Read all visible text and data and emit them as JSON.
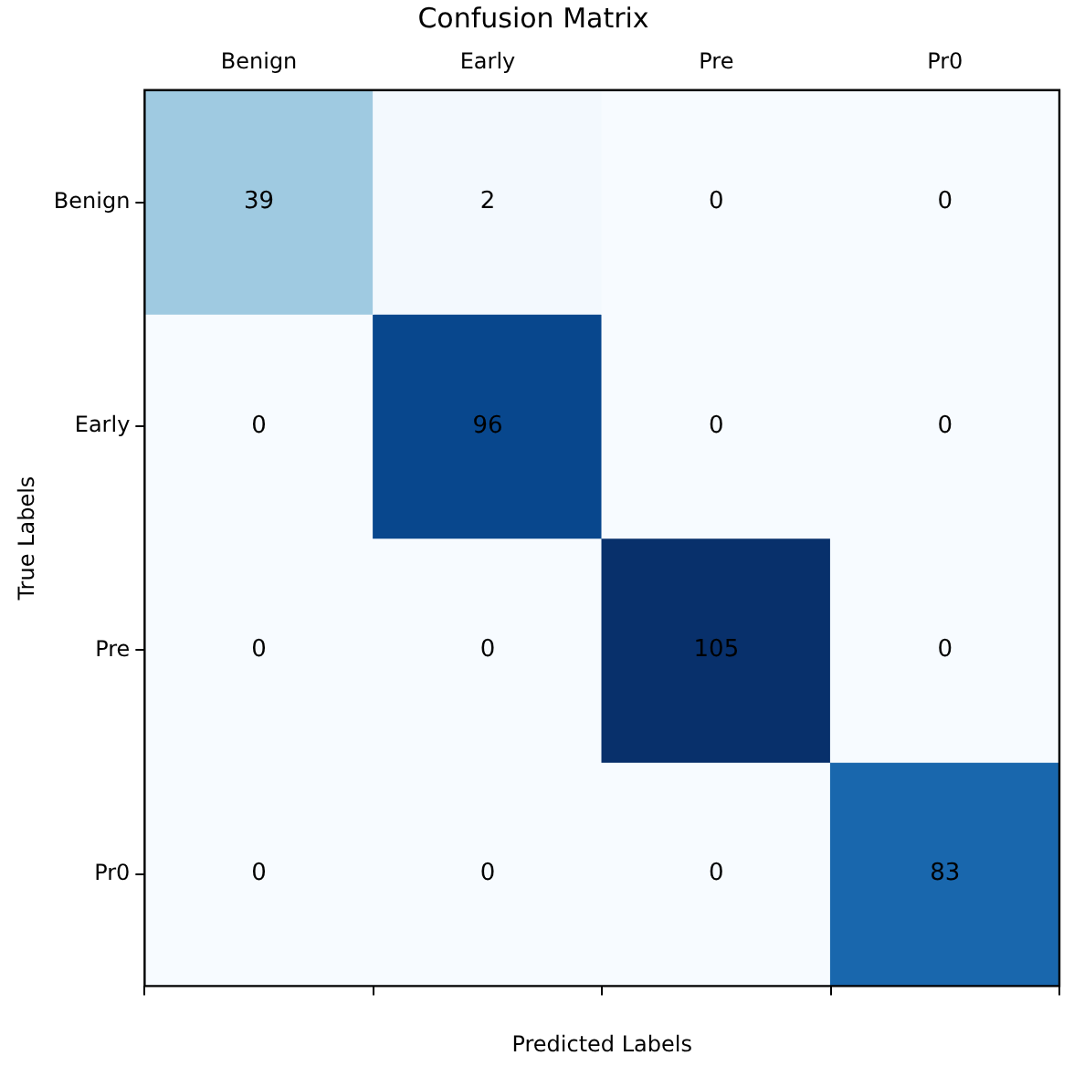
{
  "chart_data": {
    "type": "heatmap",
    "title": "Confusion Matrix",
    "xlabel": "Predicted Labels",
    "ylabel": "True Labels",
    "categories": [
      "Benign",
      "Early",
      "Pre",
      "Pr0"
    ],
    "y_categories": [
      "Benign",
      "Early",
      "Pre",
      "Pr0"
    ],
    "cells": [
      [
        39,
        2,
        0,
        0
      ],
      [
        0,
        96,
        0,
        0
      ],
      [
        0,
        0,
        105,
        0
      ],
      [
        0,
        0,
        0,
        83
      ]
    ],
    "data_labels": true,
    "grid": false,
    "legend": false
  }
}
